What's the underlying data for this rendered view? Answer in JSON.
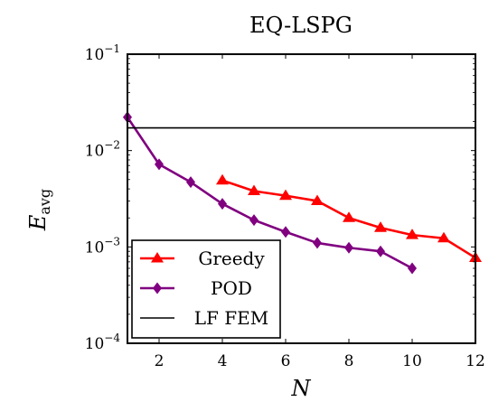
{
  "chart_data": {
    "type": "line",
    "title": "EQ-LSPG",
    "xlabel": "N",
    "ylabel_main": "E",
    "ylabel_sub": "avg",
    "xlim": [
      1,
      12
    ],
    "ylim": [
      0.0001,
      0.1
    ],
    "yscale": "log",
    "x_ticks": [
      2,
      4,
      6,
      8,
      10,
      12
    ],
    "y_ticks": [
      {
        "value": 0.1,
        "base": "10",
        "exp": "−1"
      },
      {
        "value": 0.01,
        "base": "10",
        "exp": "−2"
      },
      {
        "value": 0.001,
        "base": "10",
        "exp": "−3"
      },
      {
        "value": 0.0001,
        "base": "10",
        "exp": "−4"
      }
    ],
    "grid": false,
    "legend_position": "bottom-left",
    "series": [
      {
        "name": "Greedy",
        "color": "#ff0000",
        "marker": "triangle",
        "x": [
          4,
          5,
          6,
          7,
          8,
          9,
          10,
          11,
          12
        ],
        "y": [
          0.0049,
          0.0038,
          0.0034,
          0.003,
          0.002,
          0.00158,
          0.00133,
          0.00123,
          0.00077
        ]
      },
      {
        "name": "POD",
        "color": "#800080",
        "marker": "diamond",
        "x": [
          1,
          2,
          3,
          4,
          5,
          6,
          7,
          8,
          9,
          10
        ],
        "y": [
          0.0222,
          0.0072,
          0.0047,
          0.0028,
          0.0019,
          0.00143,
          0.0011,
          0.00098,
          0.0009,
          0.0006
        ]
      },
      {
        "name": "LF FEM",
        "color": "#000000",
        "marker": "none",
        "x": [
          1,
          12
        ],
        "y": [
          0.0172,
          0.0172
        ]
      }
    ]
  }
}
